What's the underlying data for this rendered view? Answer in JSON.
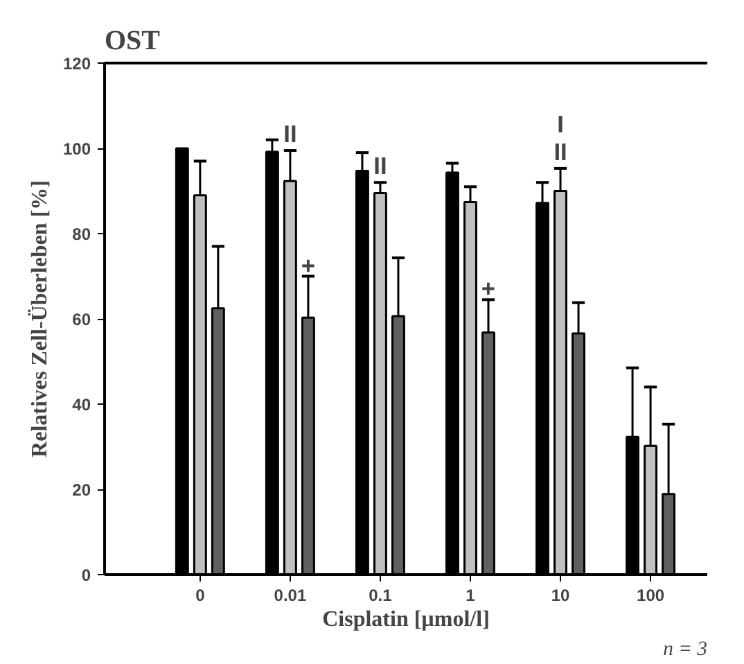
{
  "chart_data": {
    "type": "bar",
    "title": "OST",
    "xlabel": "Cisplatin [µmol/l]",
    "ylabel": "Relatives Zell-Überleben [%]",
    "categories": [
      "0",
      "0.01",
      "0.1",
      "1",
      "10",
      "100"
    ],
    "series": [
      {
        "color": "#000000",
        "values": [
          100,
          99.2,
          94.7,
          94.3,
          87.2,
          32.3
        ],
        "errors": [
          null,
          [
            99.2,
            102
          ],
          [
            94.7,
            99
          ],
          [
            94.3,
            96.5
          ],
          [
            87.2,
            92
          ],
          [
            32.3,
            48.5
          ]
        ]
      },
      {
        "color": "#c0c0c0",
        "values": [
          89,
          92.3,
          89.5,
          87.4,
          90,
          30.2
        ],
        "errors": [
          [
            89,
            97
          ],
          [
            92.3,
            99.5
          ],
          [
            89.5,
            92
          ],
          [
            87.4,
            91
          ],
          [
            90,
            95.3
          ],
          [
            30.2,
            44
          ]
        ]
      },
      {
        "color": "#606060",
        "values": [
          62.5,
          60.3,
          60.6,
          56.8,
          56.6,
          18.9
        ],
        "errors": [
          [
            62.5,
            77
          ],
          [
            60.3,
            70
          ],
          [
            60.6,
            74.3
          ],
          [
            56.8,
            64.5
          ],
          [
            56.6,
            63.8
          ],
          [
            18.9,
            35.3
          ]
        ]
      }
    ],
    "ylim": [
      0,
      120
    ],
    "yticks": [
      0,
      20,
      40,
      60,
      80,
      100,
      120
    ],
    "grid": false,
    "annotations": [
      {
        "text": "II",
        "x": "0.01",
        "y": 99.5
      },
      {
        "text": "+",
        "x": "0.01",
        "y": 70
      },
      {
        "text": "II",
        "x": "0.1",
        "y": 92
      },
      {
        "text": "+",
        "x": "1",
        "y": 64.5
      },
      {
        "text": "II",
        "x": "10",
        "y": 95.3
      },
      {
        "text": "I",
        "x": "10",
        "y": 95.3
      },
      "n = 3"
    ]
  }
}
